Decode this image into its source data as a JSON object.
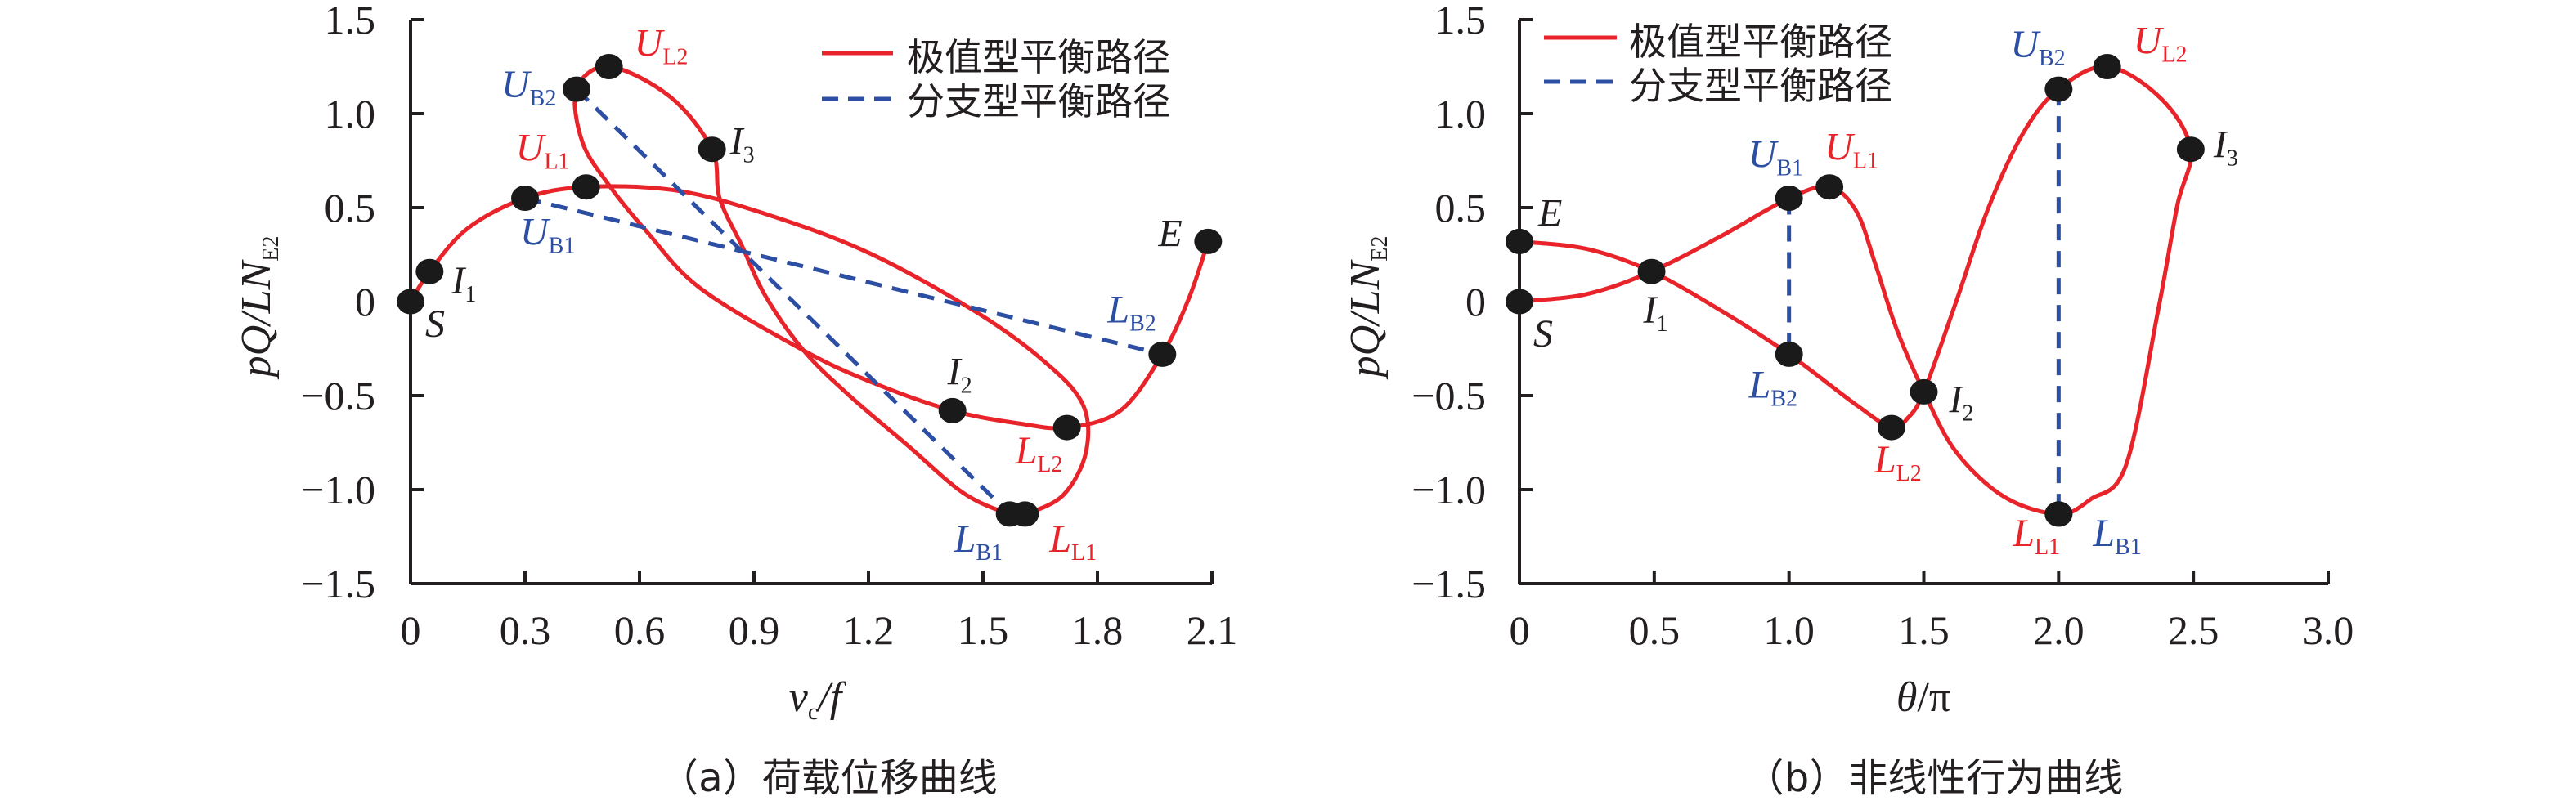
{
  "colors": {
    "extreme": "#e8232a",
    "bifurcation": "#2c4ea3",
    "special": "#231f20",
    "axis": "#231f20"
  },
  "chart_data": [
    {
      "type": "line",
      "caption": "（a）荷载位移曲线",
      "xlabel": {
        "main": "v",
        "sub": "c",
        "tail": "/f"
      },
      "ylabel": {
        "main": "pQ/LN",
        "sub": "E2"
      },
      "xlim": [
        0,
        2.1
      ],
      "ylim": [
        -1.5,
        1.5
      ],
      "xticks": [
        {
          "v": 0,
          "t": "0"
        },
        {
          "v": 0.3,
          "t": "0.3"
        },
        {
          "v": 0.6,
          "t": "0.6"
        },
        {
          "v": 0.9,
          "t": "0.9"
        },
        {
          "v": 1.2,
          "t": "1.2"
        },
        {
          "v": 1.5,
          "t": "1.5"
        },
        {
          "v": 1.8,
          "t": "1.8"
        },
        {
          "v": 2.1,
          "t": "2.1"
        }
      ],
      "yticks": [
        {
          "v": 1.5,
          "t": "1.5"
        },
        {
          "v": 1.0,
          "t": "1.0"
        },
        {
          "v": 0.5,
          "t": "0.5"
        },
        {
          "v": 0,
          "t": "0"
        },
        {
          "v": -0.5,
          "t": "−0.5"
        },
        {
          "v": -1.0,
          "t": "−1.0"
        },
        {
          "v": -1.5,
          "t": "−1.5"
        }
      ],
      "legend": {
        "placement": "top-right",
        "entries": [
          {
            "label": "极值型平衡路径",
            "style": "extreme"
          },
          {
            "label": "分支型平衡路径",
            "style": "bifurcation"
          }
        ]
      },
      "grid": false,
      "series": [
        {
          "name": "极值型平衡路径",
          "style": "extreme",
          "points": [
            [
              0,
              0
            ],
            [
              0.05,
              0.16
            ],
            [
              0.15,
              0.39
            ],
            [
              0.3,
              0.55
            ],
            [
              0.46,
              0.61
            ],
            [
              0.7,
              0.59
            ],
            [
              0.94,
              0.46
            ],
            [
              1.2,
              0.26
            ],
            [
              1.47,
              -0.04
            ],
            [
              1.65,
              -0.3
            ],
            [
              1.76,
              -0.54
            ],
            [
              1.77,
              -0.8
            ],
            [
              1.71,
              -1.03
            ],
            [
              1.61,
              -1.13
            ],
            [
              1.57,
              -1.13
            ],
            [
              1.45,
              -1.02
            ],
            [
              1.3,
              -0.76
            ],
            [
              1.15,
              -0.5
            ],
            [
              1.03,
              -0.26
            ],
            [
              0.93,
              0.03
            ],
            [
              0.87,
              0.29
            ],
            [
              0.81,
              0.55
            ],
            [
              0.79,
              0.81
            ],
            [
              0.68,
              1.09
            ],
            [
              0.52,
              1.25
            ],
            [
              0.435,
              1.13
            ],
            [
              0.45,
              0.85
            ],
            [
              0.52,
              0.62
            ],
            [
              0.62,
              0.37
            ],
            [
              0.76,
              0.07
            ],
            [
              1.03,
              -0.26
            ],
            [
              1.21,
              -0.43
            ],
            [
              1.42,
              -0.58
            ],
            [
              1.6,
              -0.65
            ],
            [
              1.72,
              -0.67
            ],
            [
              1.86,
              -0.58
            ],
            [
              1.97,
              -0.28
            ],
            [
              2.04,
              0.02
            ],
            [
              2.09,
              0.32
            ]
          ]
        },
        {
          "name": "分支型平衡路径",
          "style": "bifurcation",
          "points": [
            [
              0.3,
              0.55
            ],
            [
              1.97,
              -0.28
            ]
          ]
        },
        {
          "name": "分支型平衡路径",
          "style": "bifurcation",
          "points": [
            [
              0.435,
              1.13
            ],
            [
              1.57,
              -1.13
            ]
          ]
        }
      ],
      "markers": [
        {
          "main": "S",
          "sub": "",
          "kind": "special",
          "x": 0,
          "y": 0
        },
        {
          "main": "I",
          "sub": "1",
          "kind": "special",
          "x": 0.05,
          "y": 0.16
        },
        {
          "main": "U",
          "sub": "B1",
          "kind": "bifurcation",
          "x": 0.3,
          "y": 0.55
        },
        {
          "main": "U",
          "sub": "L1",
          "kind": "extreme",
          "x": 0.46,
          "y": 0.61
        },
        {
          "main": "U",
          "sub": "B2",
          "kind": "bifurcation",
          "x": 0.435,
          "y": 1.13
        },
        {
          "main": "U",
          "sub": "L2",
          "kind": "extreme",
          "x": 0.52,
          "y": 1.25
        },
        {
          "main": "I",
          "sub": "3",
          "kind": "special",
          "x": 0.79,
          "y": 0.81
        },
        {
          "main": "I",
          "sub": "2",
          "kind": "special",
          "x": 1.42,
          "y": -0.58
        },
        {
          "main": "L",
          "sub": "L2",
          "kind": "extreme",
          "x": 1.72,
          "y": -0.67
        },
        {
          "main": "L",
          "sub": "B1",
          "kind": "bifurcation",
          "x": 1.57,
          "y": -1.13
        },
        {
          "main": "L",
          "sub": "L1",
          "kind": "extreme",
          "x": 1.61,
          "y": -1.13
        },
        {
          "main": "L",
          "sub": "B2",
          "kind": "bifurcation",
          "x": 1.97,
          "y": -0.28
        },
        {
          "main": "E",
          "sub": "",
          "kind": "special",
          "x": 2.09,
          "y": 0.32
        }
      ]
    },
    {
      "type": "line",
      "caption": "（b）非线性行为曲线",
      "xlabel": {
        "main": "θ",
        "sub": "",
        "tail": "/π"
      },
      "ylabel": {
        "main": "pQ/LN",
        "sub": "E2"
      },
      "xlim": [
        0,
        3.0
      ],
      "ylim": [
        -1.5,
        1.5
      ],
      "xticks": [
        {
          "v": 0,
          "t": "0"
        },
        {
          "v": 0.5,
          "t": "0.5"
        },
        {
          "v": 1.0,
          "t": "1.0"
        },
        {
          "v": 1.5,
          "t": "1.5"
        },
        {
          "v": 2.0,
          "t": "2.0"
        },
        {
          "v": 2.5,
          "t": "2.5"
        },
        {
          "v": 3.0,
          "t": "3.0"
        }
      ],
      "yticks": [
        {
          "v": 1.5,
          "t": "1.5"
        },
        {
          "v": 1.0,
          "t": "1.0"
        },
        {
          "v": 0.5,
          "t": "0.5"
        },
        {
          "v": 0,
          "t": "0"
        },
        {
          "v": -0.5,
          "t": "−0.5"
        },
        {
          "v": -1.0,
          "t": "−1.0"
        },
        {
          "v": -1.5,
          "t": "−1.5"
        }
      ],
      "legend": {
        "placement": "top-left",
        "entries": [
          {
            "label": "极值型平衡路径",
            "style": "extreme"
          },
          {
            "label": "分支型平衡路径",
            "style": "bifurcation"
          }
        ]
      },
      "grid": false,
      "series": [
        {
          "name": "极值型平衡路径",
          "style": "extreme",
          "points": [
            [
              0,
              0
            ],
            [
              0.25,
              0.04
            ],
            [
              0.49,
              0.16
            ],
            [
              0.75,
              0.35
            ],
            [
              1.0,
              0.55
            ],
            [
              1.15,
              0.61
            ],
            [
              1.25,
              0.48
            ],
            [
              1.32,
              0.2
            ],
            [
              1.4,
              -0.15
            ],
            [
              1.5,
              -0.48
            ],
            [
              1.62,
              -0.8
            ],
            [
              1.8,
              -1.04
            ],
            [
              2.0,
              -1.13
            ],
            [
              2.12,
              -1.05
            ],
            [
              2.25,
              -0.87
            ],
            [
              2.37,
              -0.04
            ],
            [
              2.44,
              0.51
            ],
            [
              2.49,
              0.81
            ],
            [
              2.38,
              1.08
            ],
            [
              2.18,
              1.25
            ],
            [
              2.0,
              1.13
            ],
            [
              1.87,
              0.9
            ],
            [
              1.74,
              0.5
            ],
            [
              1.62,
              0.0
            ],
            [
              1.5,
              -0.48
            ],
            [
              1.44,
              -0.62
            ],
            [
              1.38,
              -0.67
            ],
            [
              1.25,
              -0.55
            ],
            [
              1.0,
              -0.28
            ],
            [
              0.75,
              -0.05
            ],
            [
              0.49,
              0.16
            ],
            [
              0.25,
              0.28
            ],
            [
              0,
              0.32
            ]
          ]
        },
        {
          "name": "分支型平衡路径",
          "style": "bifurcation",
          "points": [
            [
              1.0,
              0.55
            ],
            [
              1.0,
              -0.28
            ]
          ]
        },
        {
          "name": "分支型平衡路径",
          "style": "bifurcation",
          "points": [
            [
              2.0,
              1.13
            ],
            [
              2.0,
              -1.13
            ]
          ]
        }
      ],
      "markers": [
        {
          "main": "E",
          "sub": "",
          "kind": "special",
          "x": 0,
          "y": 0.32
        },
        {
          "main": "S",
          "sub": "",
          "kind": "special",
          "x": 0,
          "y": 0
        },
        {
          "main": "I",
          "sub": "1",
          "kind": "special",
          "x": 0.49,
          "y": 0.16
        },
        {
          "main": "U",
          "sub": "B1",
          "kind": "bifurcation",
          "x": 1.0,
          "y": 0.55
        },
        {
          "main": "U",
          "sub": "L1",
          "kind": "extreme",
          "x": 1.15,
          "y": 0.61
        },
        {
          "main": "L",
          "sub": "B2",
          "kind": "bifurcation",
          "x": 1.0,
          "y": -0.28
        },
        {
          "main": "L",
          "sub": "L2",
          "kind": "extreme",
          "x": 1.38,
          "y": -0.67
        },
        {
          "main": "I",
          "sub": "2",
          "kind": "special",
          "x": 1.5,
          "y": -0.48
        },
        {
          "main": "L",
          "sub": "L1",
          "kind": "extreme",
          "x": 2.0,
          "y": -1.13
        },
        {
          "main": "L",
          "sub": "B1",
          "kind": "bifurcation",
          "x": 2.0,
          "y": -1.13
        },
        {
          "main": "U",
          "sub": "B2",
          "kind": "bifurcation",
          "x": 2.0,
          "y": 1.13
        },
        {
          "main": "U",
          "sub": "L2",
          "kind": "extreme",
          "x": 2.18,
          "y": 1.25
        },
        {
          "main": "I",
          "sub": "3",
          "kind": "special",
          "x": 2.49,
          "y": 0.81
        }
      ]
    }
  ]
}
